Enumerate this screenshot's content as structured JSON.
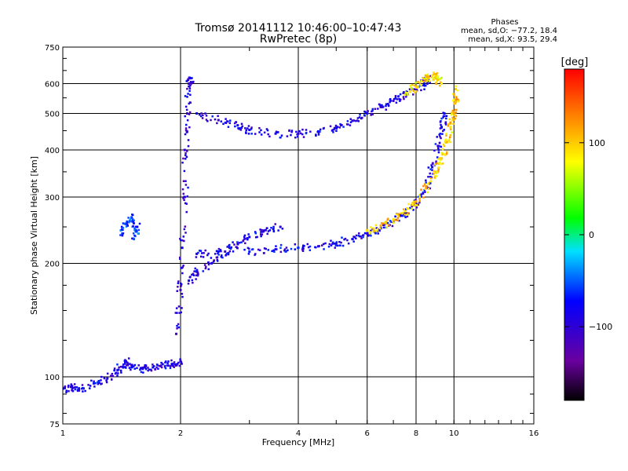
{
  "chart_data": {
    "type": "scatter",
    "title": "Tromsø 20141112 10:46:00–10:47:43",
    "subtitle": "RwPretec (8p)",
    "stats": {
      "header": "Phases",
      "line_o": "mean, sd,O: −77.2, 18.4",
      "line_x": "mean, sd,X:  93.5, 29.4"
    },
    "xlabel": "Frequency [MHz]",
    "ylabel": "Stationary phase Virtual Height [km]",
    "x_scale": "log",
    "y_scale": "log",
    "xlim": [
      1,
      16
    ],
    "ylim": [
      75,
      750
    ],
    "x_ticks": [
      {
        "value": 1,
        "label": "1"
      },
      {
        "value": 2,
        "label": "2"
      },
      {
        "value": 4,
        "label": "4"
      },
      {
        "value": 6,
        "label": "6"
      },
      {
        "value": 8,
        "label": "8"
      },
      {
        "value": 10,
        "label": "10"
      },
      {
        "value": 16,
        "label": "16"
      }
    ],
    "y_ticks": [
      {
        "value": 75,
        "label": "75"
      },
      {
        "value": 100,
        "label": "100"
      },
      {
        "value": 200,
        "label": "200"
      },
      {
        "value": 300,
        "label": "300"
      },
      {
        "value": 400,
        "label": "400"
      },
      {
        "value": 500,
        "label": "500"
      },
      {
        "value": 600,
        "label": "600"
      },
      {
        "value": 750,
        "label": "750"
      }
    ],
    "grid": true,
    "colorbar": {
      "label": "[deg]",
      "range": [
        -180,
        180
      ],
      "ticks": [
        {
          "value": 100,
          "label": "100"
        },
        {
          "value": 0,
          "label": "0"
        },
        {
          "value": -100,
          "label": "−100"
        }
      ]
    },
    "traces": [
      {
        "id": "E-region low band",
        "phase": -90,
        "points": [
          [
            1.0,
            93
          ],
          [
            1.05,
            94
          ],
          [
            1.1,
            92
          ],
          [
            1.2,
            96
          ],
          [
            1.3,
            99
          ],
          [
            1.38,
            104
          ],
          [
            1.45,
            110
          ],
          [
            1.5,
            106
          ],
          [
            1.6,
            105
          ],
          [
            1.7,
            106
          ],
          [
            1.8,
            108
          ],
          [
            1.9,
            108
          ],
          [
            2.0,
            110
          ]
        ]
      },
      {
        "id": "F vertical spread",
        "phase": -95,
        "points": [
          [
            1.95,
            130
          ],
          [
            2.0,
            170
          ],
          [
            2.02,
            220
          ],
          [
            2.05,
            300
          ],
          [
            2.05,
            400
          ],
          [
            2.08,
            500
          ],
          [
            2.1,
            600
          ],
          [
            2.12,
            620
          ]
        ]
      },
      {
        "id": "spread F body",
        "phase": -90,
        "points": [
          [
            2.1,
            180
          ],
          [
            2.2,
            190
          ],
          [
            2.4,
            200
          ],
          [
            2.6,
            215
          ],
          [
            2.8,
            225
          ],
          [
            3.0,
            235
          ],
          [
            3.3,
            245
          ],
          [
            3.6,
            250
          ]
        ]
      },
      {
        "id": "F lower trace O",
        "phase": -85,
        "points": [
          [
            2.2,
            212
          ],
          [
            2.5,
            215
          ],
          [
            3.0,
            215
          ],
          [
            3.5,
            218
          ],
          [
            4.0,
            220
          ],
          [
            4.5,
            222
          ],
          [
            5.0,
            226
          ],
          [
            5.5,
            232
          ],
          [
            6.0,
            240
          ],
          [
            6.5,
            248
          ],
          [
            7.0,
            258
          ],
          [
            7.5,
            272
          ],
          [
            8.0,
            290
          ],
          [
            8.5,
            320
          ],
          [
            8.8,
            360
          ],
          [
            9.1,
            410
          ],
          [
            9.3,
            460
          ],
          [
            9.45,
            500
          ]
        ]
      },
      {
        "id": "F trace X",
        "phase": 100,
        "points": [
          [
            6.0,
            245
          ],
          [
            6.5,
            252
          ],
          [
            7.0,
            262
          ],
          [
            7.5,
            275
          ],
          [
            8.0,
            292
          ],
          [
            8.5,
            320
          ],
          [
            9.0,
            350
          ],
          [
            9.3,
            380
          ],
          [
            9.6,
            420
          ],
          [
            9.8,
            470
          ],
          [
            10.0,
            500
          ],
          [
            10.1,
            540
          ],
          [
            10.1,
            580
          ]
        ]
      },
      {
        "id": "multiple echo band",
        "phase": -90,
        "points": [
          [
            2.2,
            500
          ],
          [
            2.5,
            480
          ],
          [
            2.8,
            465
          ],
          [
            3.0,
            452
          ],
          [
            3.5,
            442
          ],
          [
            4.0,
            442
          ],
          [
            4.5,
            448
          ],
          [
            5.0,
            458
          ],
          [
            5.5,
            478
          ],
          [
            6.0,
            500
          ],
          [
            6.5,
            520
          ],
          [
            7.0,
            540
          ],
          [
            7.5,
            560
          ],
          [
            8.0,
            580
          ],
          [
            8.4,
            600
          ],
          [
            8.6,
            620
          ]
        ]
      },
      {
        "id": "multiple echo band X",
        "phase": 90,
        "points": [
          [
            7.5,
            560
          ],
          [
            8.0,
            590
          ],
          [
            8.5,
            620
          ],
          [
            8.8,
            630
          ],
          [
            9.0,
            625
          ],
          [
            9.3,
            600
          ]
        ]
      },
      {
        "id": "isolated cluster",
        "phase": -60,
        "points": [
          [
            1.42,
            240
          ],
          [
            1.45,
            255
          ],
          [
            1.5,
            265
          ],
          [
            1.55,
            250
          ],
          [
            1.52,
            232
          ]
        ]
      }
    ]
  }
}
